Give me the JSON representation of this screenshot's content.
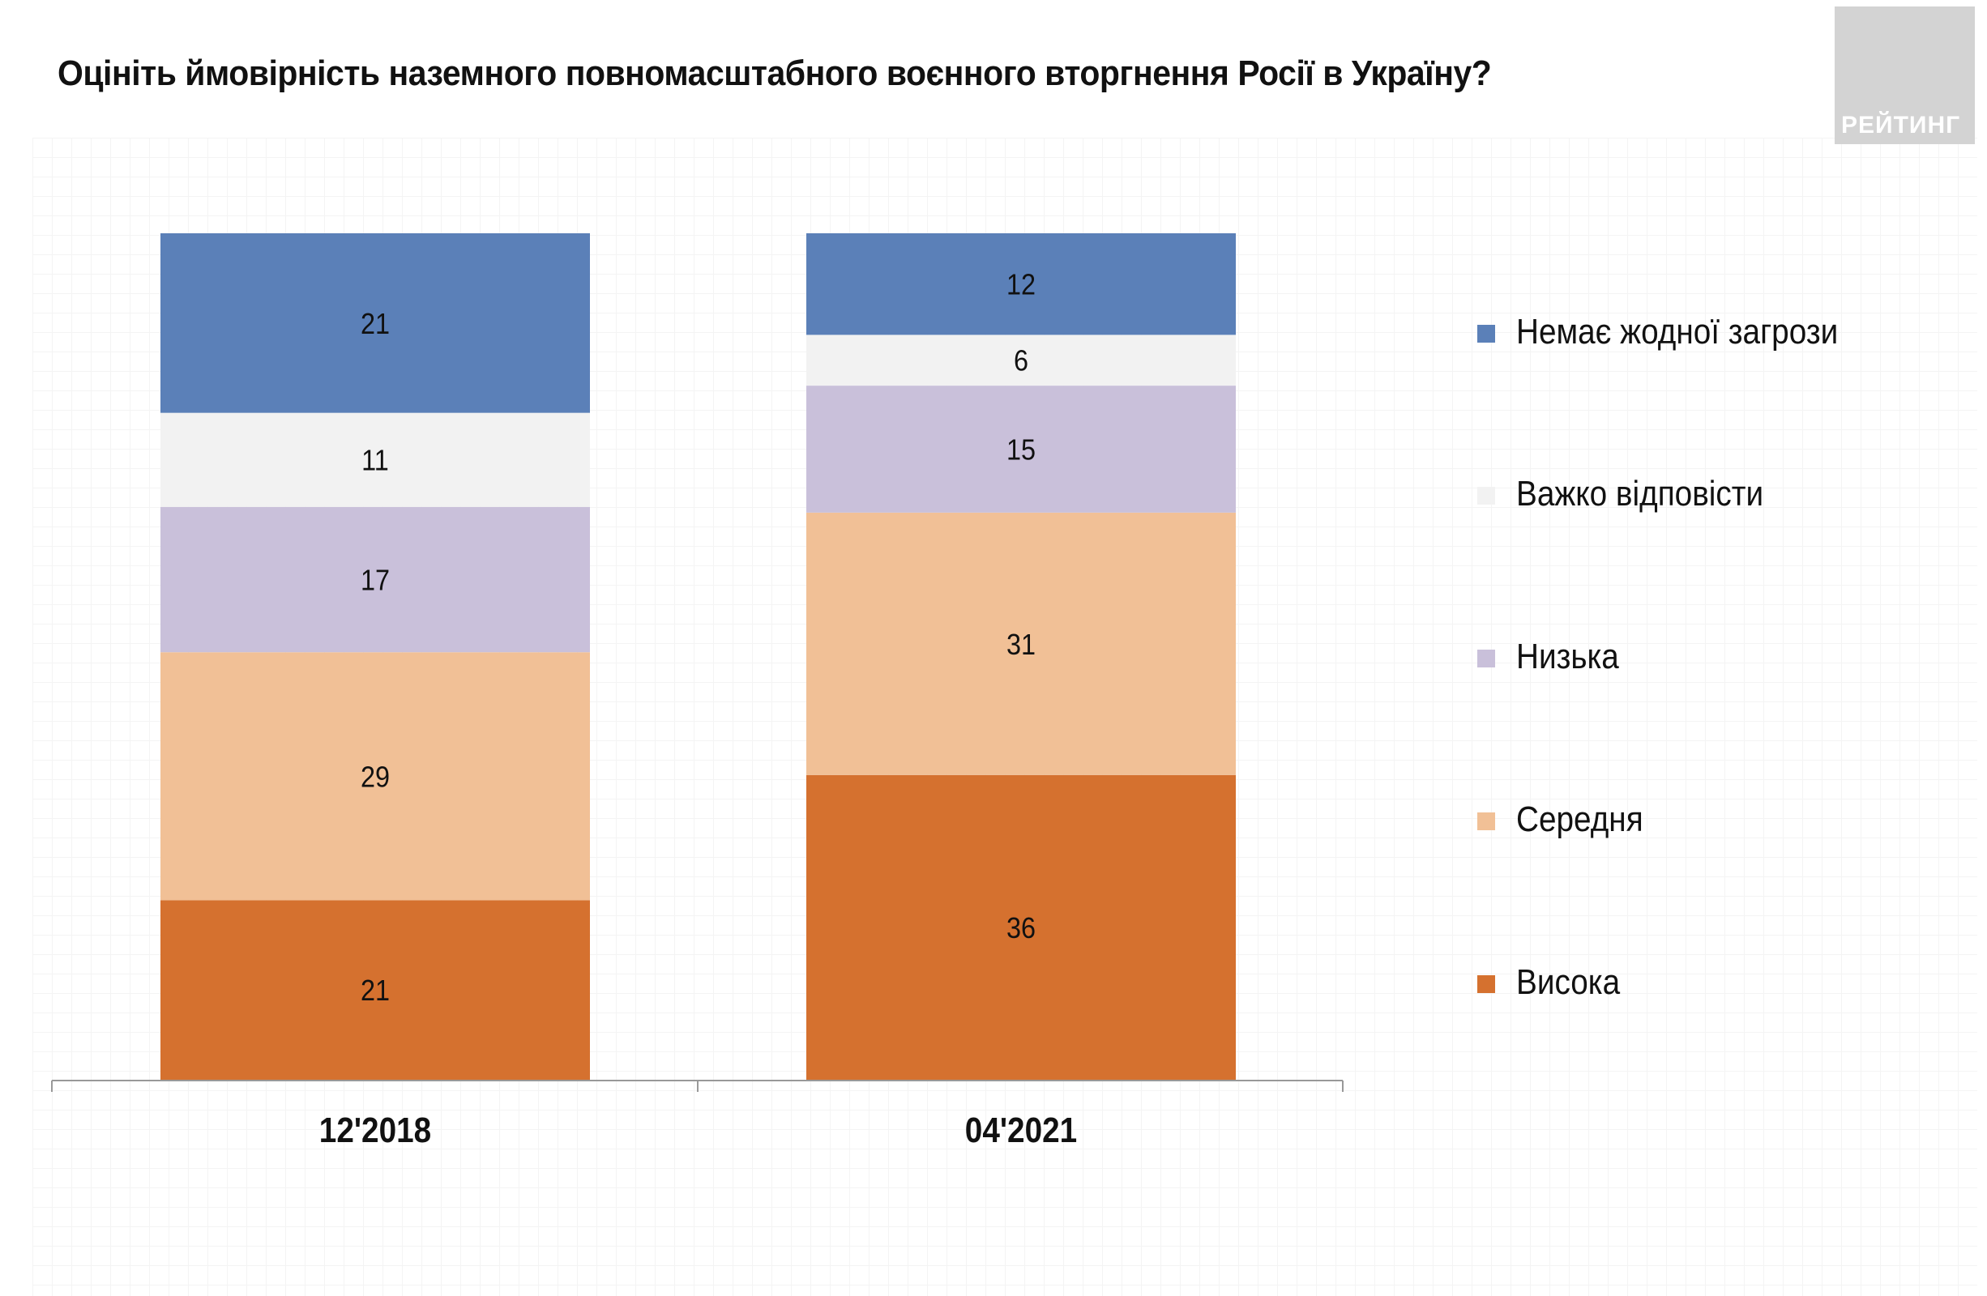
{
  "title": "Оцініть ймовірність наземного повномасштабного воєнного вторгнення Росії в Україну?",
  "logo_text": "РЕЙТИНГ",
  "chart_data": {
    "type": "stacked-bar",
    "title": "Оцініть ймовірність наземного повномасштабного воєнного вторгнення Росії в Україну?",
    "categories": [
      "12'2018",
      "04'2021"
    ],
    "series": [
      {
        "name": "Висока",
        "color": "#d5712f",
        "values": [
          21,
          36
        ]
      },
      {
        "name": "Середня",
        "color": "#f1c096",
        "values": [
          29,
          31
        ]
      },
      {
        "name": "Низька",
        "color": "#c9c0da",
        "values": [
          17,
          15
        ]
      },
      {
        "name": "Важко відповісти",
        "color": "#f2f2f2",
        "values": [
          11,
          6
        ]
      },
      {
        "name": "Немає жодної загрози",
        "color": "#5b80b8",
        "values": [
          21,
          12
        ]
      }
    ],
    "legend_order": [
      "Немає жодної загрози",
      "Важко відповісти",
      "Низька",
      "Середня",
      "Висока"
    ],
    "legend_position": "right",
    "grid": false
  }
}
